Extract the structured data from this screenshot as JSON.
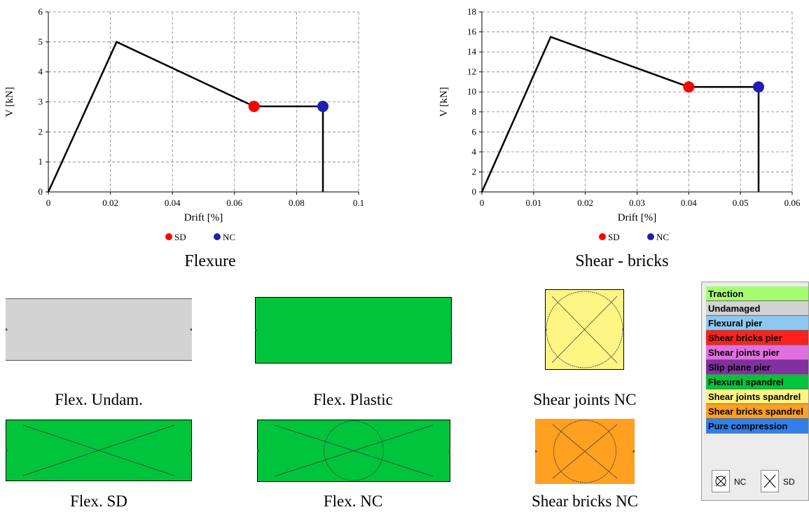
{
  "chart_data": [
    {
      "type": "line",
      "caption": "Flexure",
      "xlabel": "Drift [%]",
      "ylabel": "V [kN]",
      "xlim": [
        0,
        0.1
      ],
      "ylim": [
        0,
        6
      ],
      "xticks": [
        0,
        0.02,
        0.04,
        0.06,
        0.08,
        0.1
      ],
      "xtick_labels": [
        "0",
        "0.02",
        "0.04",
        "0.06",
        "0.08",
        "0.1"
      ],
      "yticks": [
        0,
        1,
        2,
        3,
        4,
        5,
        6
      ],
      "ytick_labels": [
        "0",
        "1",
        "2",
        "3",
        "4",
        "5",
        "6"
      ],
      "grid": true,
      "curve": {
        "x": [
          0,
          0.022,
          0.0663,
          0.0885,
          0.0885
        ],
        "y": [
          0,
          5.0,
          2.85,
          2.85,
          0
        ]
      },
      "points": [
        {
          "label": "SD",
          "x": 0.0663,
          "y": 2.85,
          "color": "#ff0000"
        },
        {
          "label": "NC",
          "x": 0.0885,
          "y": 2.85,
          "color": "#1f1fb4"
        }
      ],
      "legend_position": "bottom-center"
    },
    {
      "type": "line",
      "caption": "Shear - bricks",
      "xlabel": "Drift [%]",
      "ylabel": "V [kN]",
      "xlim": [
        0,
        0.06
      ],
      "ylim": [
        0,
        18
      ],
      "xticks": [
        0,
        0.01,
        0.02,
        0.03,
        0.04,
        0.05,
        0.06
      ],
      "xtick_labels": [
        "0",
        "0.01",
        "0.02",
        "0.03",
        "0.04",
        "0.05",
        "0.06"
      ],
      "yticks": [
        0,
        2,
        4,
        6,
        8,
        10,
        12,
        14,
        16,
        18
      ],
      "ytick_labels": [
        "0",
        "2",
        "4",
        "6",
        "8",
        "10",
        "12",
        "14",
        "16",
        "18"
      ],
      "grid": true,
      "curve": {
        "x": [
          0,
          0.0133,
          0.04,
          0.0535,
          0.0535
        ],
        "y": [
          0,
          15.5,
          10.5,
          10.5,
          0
        ]
      },
      "points": [
        {
          "label": "SD",
          "x": 0.04,
          "y": 10.5,
          "color": "#ff0000"
        },
        {
          "label": "NC",
          "x": 0.0535,
          "y": 10.5,
          "color": "#1f1fb4"
        }
      ],
      "legend_position": "bottom-center"
    }
  ],
  "elements": [
    {
      "label": "Flex. Undam.",
      "color": "#d3d3d3",
      "symbol": "none"
    },
    {
      "label": "Flex. Plastic",
      "color": "#00c43c",
      "symbol": "none"
    },
    {
      "label": "Shear joints NC",
      "color": "#fff585",
      "symbol": "cross-circle"
    },
    {
      "label": "Flex. SD",
      "color": "#00c43c",
      "symbol": "cross"
    },
    {
      "label": "Flex. NC",
      "color": "#00c43c",
      "symbol": "cross-circle"
    },
    {
      "label": "Shear bricks NC",
      "color": "#ffa020",
      "symbol": "cross-circle"
    }
  ],
  "legend": {
    "items": [
      {
        "label": "Traction",
        "color": "#a4ff70",
        "text_color": "#000000"
      },
      {
        "label": "Undamaged",
        "color": "#d3d3d3",
        "text_color": "#000000"
      },
      {
        "label": "Flexural pier",
        "color": "#8ec8f0",
        "text_color": "#000000"
      },
      {
        "label": "Shear bricks pier",
        "color": "#ff2020",
        "text_color": "#000000"
      },
      {
        "label": "Shear joints pier",
        "color": "#e070e0",
        "text_color": "#000000"
      },
      {
        "label": "Slip plane pier",
        "color": "#8030a0",
        "text_color": "#000000"
      },
      {
        "label": "Flexural spandrel",
        "color": "#00c43c",
        "text_color": "#000000"
      },
      {
        "label": "Shear joints spandrel",
        "color": "#fff585",
        "text_color": "#000000"
      },
      {
        "label": "Shear bricks spandrel",
        "color": "#ffa020",
        "text_color": "#000000"
      },
      {
        "label": "Pure compression",
        "color": "#3080e8",
        "text_color": "#000000"
      }
    ],
    "nc_label": "NC",
    "sd_label": "SD"
  }
}
